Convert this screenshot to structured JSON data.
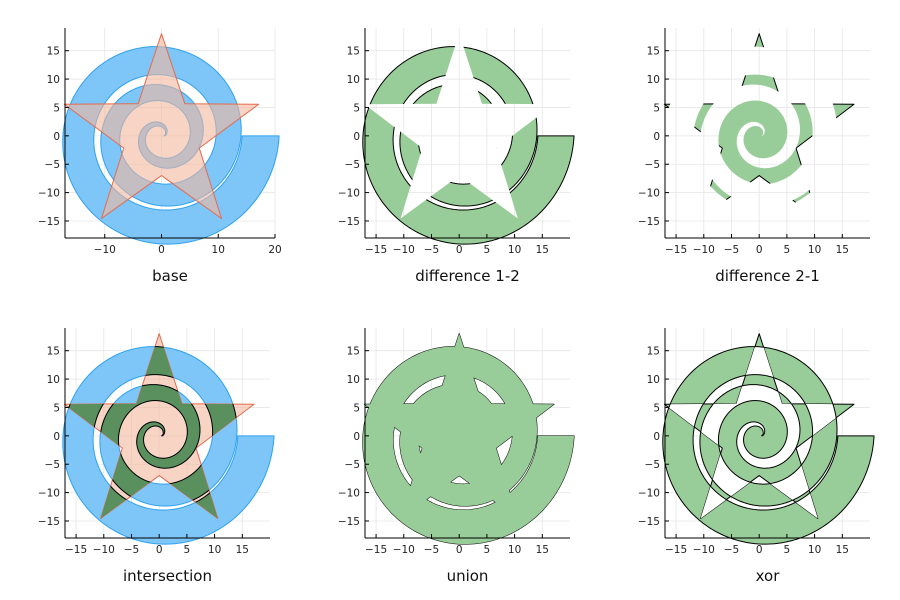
{
  "chart_data": [
    {
      "type": "area",
      "title": "base",
      "xlim": [
        -17,
        20
      ],
      "ylim": [
        -18,
        19
      ],
      "x_ticks": [
        -10,
        0,
        10,
        20
      ],
      "y_ticks": [
        -15,
        -10,
        -5,
        0,
        5,
        10,
        15
      ],
      "series": [
        {
          "shape": "spiral-band",
          "fill": "#7ec6f8",
          "stroke": "#2ea1ef",
          "opacity": 1.0
        },
        {
          "shape": "star",
          "points": 5,
          "outer_radius": 18,
          "inner_radius": 7,
          "fill": "#f3b79f",
          "stroke": "#e46b4d",
          "opacity": 0.6
        }
      ]
    },
    {
      "type": "area",
      "title": "difference 1-2",
      "xlim": [
        -17,
        20
      ],
      "ylim": [
        -18,
        19
      ],
      "x_ticks": [
        -15,
        -10,
        -5,
        0,
        5,
        10,
        15
      ],
      "y_ticks": [
        -15,
        -10,
        -5,
        0,
        5,
        10,
        15
      ],
      "series": [
        {
          "shape": "spiral-band",
          "clip": "outside-star",
          "fill": "#98cc98",
          "stroke": "#000000",
          "opacity": 1.0
        }
      ]
    },
    {
      "type": "area",
      "title": "difference 2-1",
      "xlim": [
        -17,
        20
      ],
      "ylim": [
        -18,
        19
      ],
      "x_ticks": [
        -15,
        -10,
        -5,
        0,
        5,
        10,
        15
      ],
      "y_ticks": [
        -15,
        -10,
        -5,
        0,
        5,
        10,
        15
      ],
      "series": [
        {
          "shape": "star",
          "clip": "outside-spiral",
          "points": 5,
          "outer_radius": 18,
          "inner_radius": 7,
          "fill": "#98cc98",
          "stroke": "#000000",
          "opacity": 1.0
        }
      ]
    },
    {
      "type": "area",
      "title": "intersection",
      "xlim": [
        -17,
        20
      ],
      "ylim": [
        -18,
        19
      ],
      "x_ticks": [
        -15,
        -10,
        -5,
        0,
        5,
        10,
        15
      ],
      "y_ticks": [
        -15,
        -10,
        -5,
        0,
        5,
        10,
        15
      ],
      "series": [
        {
          "shape": "spiral-band",
          "fill": "#7ec6f8",
          "stroke": "#2ea1ef",
          "opacity": 1.0
        },
        {
          "shape": "star",
          "points": 5,
          "outer_radius": 18,
          "inner_radius": 7,
          "fill": "#f3b79f",
          "stroke": "#e46b4d",
          "opacity": 0.6
        },
        {
          "shape": "spiral-band",
          "clip": "inside-star",
          "fill": "#5a8f5e",
          "stroke": "#000000",
          "opacity": 1.0
        }
      ]
    },
    {
      "type": "area",
      "title": "union",
      "xlim": [
        -17,
        20
      ],
      "ylim": [
        -18,
        19
      ],
      "x_ticks": [
        -15,
        -10,
        -5,
        0,
        5,
        10,
        15
      ],
      "y_ticks": [
        -15,
        -10,
        -5,
        0,
        5,
        10,
        15
      ],
      "series": [
        {
          "shape": "spiral-band",
          "fill": "#98cc98",
          "stroke": "#000000",
          "opacity": 1.0
        },
        {
          "shape": "star",
          "points": 5,
          "outer_radius": 18,
          "inner_radius": 7,
          "fill": "#98cc98",
          "stroke": "#000000",
          "opacity": 1.0
        },
        {
          "shape": "spiral-band",
          "fill": "#98cc98",
          "stroke": "none",
          "opacity": 1.0
        },
        {
          "shape": "star",
          "points": 5,
          "outer_radius": 18,
          "inner_radius": 7,
          "fill": "#98cc98",
          "stroke": "none",
          "opacity": 1.0
        }
      ]
    },
    {
      "type": "area",
      "title": "xor",
      "xlim": [
        -17,
        20
      ],
      "ylim": [
        -18,
        19
      ],
      "x_ticks": [
        -15,
        -10,
        -5,
        0,
        5,
        10,
        15
      ],
      "y_ticks": [
        -15,
        -10,
        -5,
        0,
        5,
        10,
        15
      ],
      "series": [
        {
          "shape": "spiral-band",
          "fill": "#98cc98",
          "stroke": "#000000",
          "opacity": 1.0
        },
        {
          "shape": "star",
          "points": 5,
          "outer_radius": 18,
          "inner_radius": 7,
          "fill": "#98cc98",
          "stroke": "#000000",
          "opacity": 1.0
        },
        {
          "shape": "spiral-band",
          "clip": "inside-star",
          "fill": "#ffffff",
          "stroke": "#000000",
          "opacity": 1.0
        }
      ]
    }
  ]
}
